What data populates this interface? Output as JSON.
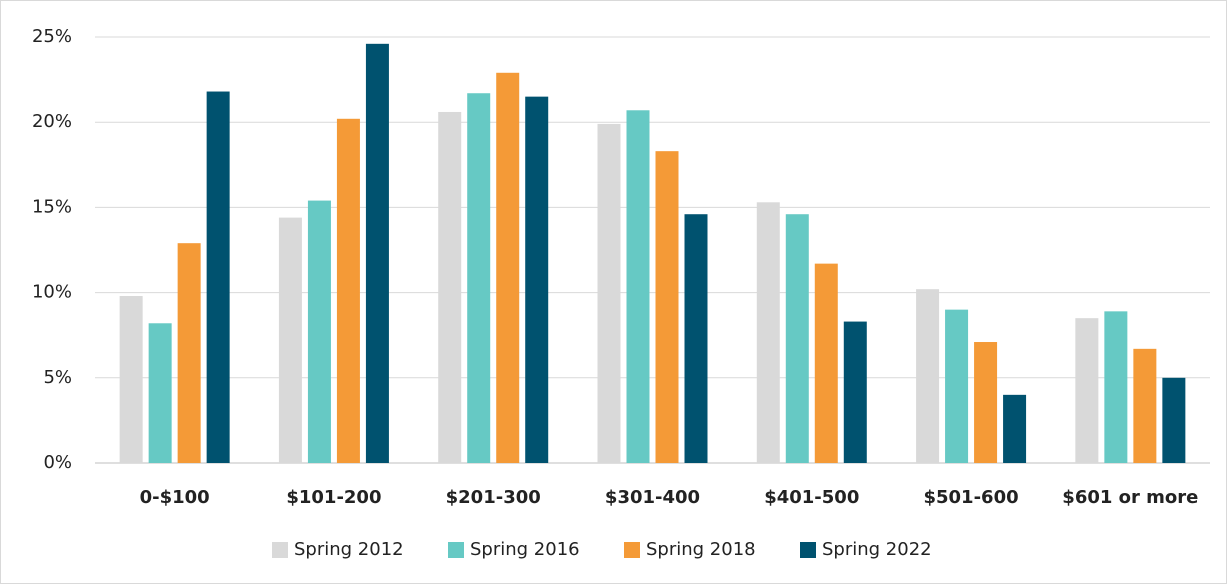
{
  "chart_data": {
    "type": "bar",
    "categories": [
      "0-$100",
      "$101-200",
      "$201-300",
      "$301-400",
      "$401-500",
      "$501-600",
      "$601 or more"
    ],
    "series": [
      {
        "name": "Spring 2012",
        "color": "#d9d9d9",
        "values": [
          9.8,
          14.4,
          20.6,
          19.9,
          15.3,
          10.2,
          8.5
        ]
      },
      {
        "name": "Spring 2016",
        "color": "#66c9c4",
        "values": [
          8.2,
          15.4,
          21.7,
          20.7,
          14.6,
          9.0,
          8.9
        ]
      },
      {
        "name": "Spring 2018",
        "color": "#f49a37",
        "values": [
          12.9,
          20.2,
          22.9,
          18.3,
          11.7,
          7.1,
          6.7
        ]
      },
      {
        "name": "Spring 2022",
        "color": "#00526f",
        "values": [
          21.8,
          24.6,
          21.5,
          14.6,
          8.3,
          4.0,
          5.0
        ]
      }
    ],
    "ylim": [
      0,
      25
    ],
    "yticks": [
      {
        "value": 0,
        "label": "0%"
      },
      {
        "value": 5,
        "label": "5%"
      },
      {
        "value": 10,
        "label": "10%"
      },
      {
        "value": 15,
        "label": "15%"
      },
      {
        "value": 20,
        "label": "20%"
      },
      {
        "value": 25,
        "label": "25%"
      }
    ],
    "grid": true,
    "legend": "bottom"
  }
}
